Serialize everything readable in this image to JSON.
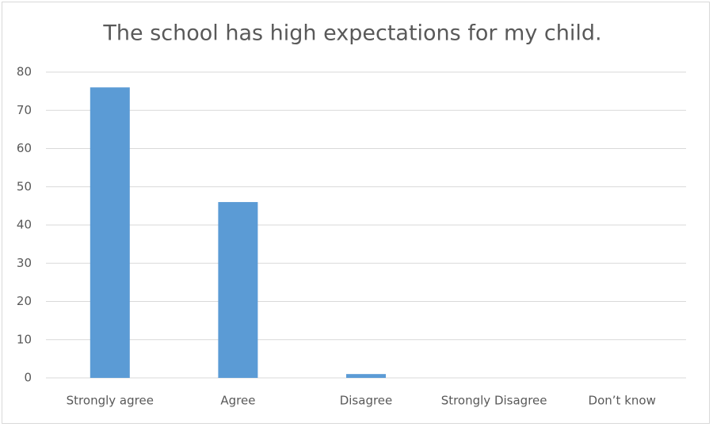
{
  "chart_data": {
    "type": "bar",
    "title": "The school has high expectations for my child.",
    "categories": [
      "Strongly agree",
      "Agree",
      "Disagree",
      "Strongly Disagree",
      "Don’t know"
    ],
    "values": [
      76,
      46,
      1,
      0,
      0
    ],
    "color": "#5b9bd5",
    "ylim": [
      0,
      80
    ],
    "yticks": [
      0,
      10,
      20,
      30,
      40,
      50,
      60,
      70,
      80
    ],
    "grid": true
  }
}
